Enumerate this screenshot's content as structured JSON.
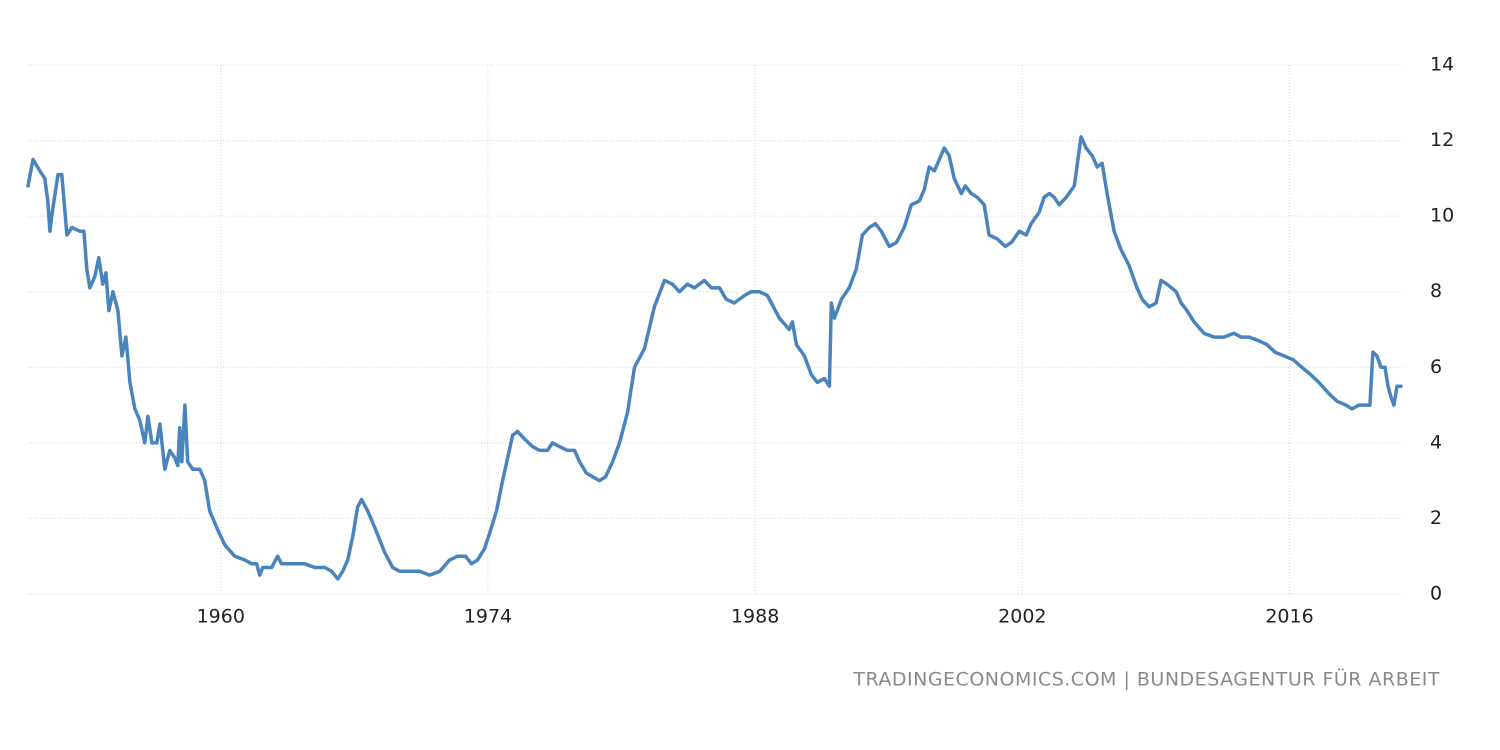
{
  "chart_data": {
    "type": "line",
    "source": "TRADINGECONOMICS.COM | BUNDESAGENTUR FÜR ARBEIT",
    "color": "#4a84bc",
    "grid": true,
    "xlim": [
      1949.9,
      2022.05
    ],
    "xticks": [
      1960,
      1974,
      1988,
      2002,
      2016
    ],
    "ylim": [
      0,
      14
    ],
    "yticks": [
      0,
      2,
      4,
      6,
      8,
      10,
      12,
      14
    ],
    "x": [
      1949.9,
      1950.16,
      1950.52,
      1950.78,
      1950.94,
      1951.05,
      1951.2,
      1951.47,
      1951.67,
      1951.94,
      1952.2,
      1952.62,
      1952.83,
      1952.98,
      1953.14,
      1953.4,
      1953.61,
      1953.82,
      1953.98,
      1954.14,
      1954.35,
      1954.61,
      1954.82,
      1955.03,
      1955.24,
      1955.5,
      1955.76,
      1956.02,
      1956.18,
      1956.39,
      1956.65,
      1956.81,
      1957.07,
      1957.33,
      1957.59,
      1957.75,
      1957.85,
      1957.96,
      1958.12,
      1958.27,
      1958.53,
      1958.9,
      1959.16,
      1959.42,
      1959.84,
      1960.21,
      1960.73,
      1961.26,
      1961.62,
      1961.88,
      1962.04,
      1962.2,
      1962.67,
      1962.98,
      1963.19,
      1963.87,
      1964.4,
      1964.92,
      1965.45,
      1965.81,
      1966.13,
      1966.39,
      1966.65,
      1966.91,
      1967.17,
      1967.38,
      1967.7,
      1968.12,
      1968.59,
      1969.01,
      1969.37,
      1969.9,
      1970.42,
      1970.94,
      1971.47,
      1971.99,
      1972.41,
      1972.83,
      1973.14,
      1973.46,
      1973.82,
      1974.08,
      1974.45,
      1974.77,
      1975.03,
      1975.29,
      1975.55,
      1975.92,
      1976.34,
      1976.7,
      1977.12,
      1977.38,
      1977.75,
      1978.17,
      1978.54,
      1978.8,
      1979.16,
      1979.84,
      1980.16,
      1980.53,
      1980.89,
      1981.31,
      1981.68,
      1982.2,
      1982.72,
      1983.25,
      1983.67,
      1984.03,
      1984.45,
      1984.82,
      1985.34,
      1985.71,
      1986.13,
      1986.49,
      1986.91,
      1987.44,
      1987.8,
      1988.22,
      1988.64,
      1989.27,
      1989.79,
      1989.95,
      1990.16,
      1990.58,
      1990.95,
      1991.26,
      1991.63,
      1991.89,
      1991.99,
      1992.15,
      1992.52,
      1992.93,
      1993.3,
      1993.62,
      1993.98,
      1994.3,
      1994.61,
      1995.03,
      1995.4,
      1995.81,
      1996.18,
      1996.6,
      1996.86,
      1997.12,
      1997.39,
      1997.65,
      1997.91,
      1998.17,
      1998.43,
      1998.8,
      1999.01,
      1999.32,
      1999.64,
      2000.0,
      2000.26,
      2000.68,
      2001.1,
      2001.42,
      2001.84,
      2002.2,
      2002.46,
      2002.88,
      2003.14,
      2003.41,
      2003.67,
      2003.93,
      2004.3,
      2004.72,
      2005.08,
      2005.34,
      2005.66,
      2005.92,
      2006.18,
      2006.44,
      2006.81,
      2007.18,
      2007.59,
      2008.01,
      2008.28,
      2008.64,
      2009.01,
      2009.27,
      2009.58,
      2010.06,
      2010.32,
      2010.63,
      2011.0,
      2011.52,
      2012.05,
      2012.57,
      2013.09,
      2013.46,
      2013.88,
      2014.4,
      2014.82,
      2015.24,
      2015.71,
      2016.18,
      2016.65,
      2017.12,
      2017.54,
      2018.07,
      2018.49,
      2018.96,
      2019.27,
      2019.64,
      2020.21,
      2020.37,
      2020.58,
      2020.79,
      2021.0,
      2021.16,
      2021.32,
      2021.47,
      2021.63,
      2021.84
    ],
    "values": [
      10.8,
      11.5,
      11.2,
      11.0,
      10.4,
      9.6,
      10.2,
      11.1,
      11.1,
      9.5,
      9.7,
      9.6,
      9.6,
      8.6,
      8.1,
      8.4,
      8.9,
      8.2,
      8.5,
      7.5,
      8.0,
      7.5,
      6.3,
      6.8,
      5.6,
      4.9,
      4.6,
      4.0,
      4.7,
      4.0,
      4.0,
      4.5,
      3.3,
      3.8,
      3.6,
      3.4,
      4.4,
      3.5,
      5.0,
      3.5,
      3.3,
      3.3,
      3.0,
      2.2,
      1.7,
      1.3,
      1.0,
      0.9,
      0.8,
      0.8,
      0.5,
      0.7,
      0.7,
      1.0,
      0.8,
      0.8,
      0.8,
      0.7,
      0.7,
      0.6,
      0.4,
      0.6,
      0.9,
      1.5,
      2.3,
      2.5,
      2.2,
      1.7,
      1.1,
      0.7,
      0.6,
      0.6,
      0.6,
      0.5,
      0.6,
      0.9,
      1.0,
      1.0,
      0.8,
      0.9,
      1.2,
      1.6,
      2.2,
      3.0,
      3.6,
      4.2,
      4.3,
      4.1,
      3.9,
      3.8,
      3.8,
      4.0,
      3.9,
      3.8,
      3.8,
      3.5,
      3.2,
      3.0,
      3.1,
      3.5,
      4.0,
      4.8,
      6.0,
      6.5,
      7.6,
      8.3,
      8.2,
      8.0,
      8.2,
      8.1,
      8.3,
      8.1,
      8.1,
      7.8,
      7.7,
      7.9,
      8.0,
      8.0,
      7.9,
      7.3,
      7.0,
      7.2,
      6.6,
      6.3,
      5.8,
      5.6,
      5.7,
      5.5,
      7.7,
      7.3,
      7.8,
      8.1,
      8.6,
      9.5,
      9.7,
      9.8,
      9.6,
      9.2,
      9.3,
      9.7,
      10.3,
      10.4,
      10.7,
      11.3,
      11.2,
      11.5,
      11.8,
      11.6,
      11.0,
      10.6,
      10.8,
      10.6,
      10.5,
      10.3,
      9.5,
      9.4,
      9.2,
      9.3,
      9.6,
      9.5,
      9.8,
      10.1,
      10.5,
      10.6,
      10.5,
      10.3,
      10.5,
      10.8,
      12.1,
      11.8,
      11.6,
      11.3,
      11.4,
      10.6,
      9.6,
      9.1,
      8.7,
      8.1,
      7.8,
      7.6,
      7.7,
      8.3,
      8.2,
      8.0,
      7.7,
      7.5,
      7.2,
      6.9,
      6.8,
      6.8,
      6.9,
      6.8,
      6.8,
      6.7,
      6.6,
      6.4,
      6.3,
      6.2,
      6.0,
      5.8,
      5.6,
      5.3,
      5.1,
      5.0,
      4.9,
      5.0,
      5.0,
      6.4,
      6.3,
      6.0,
      6.0,
      5.5,
      5.2,
      5.0,
      5.5,
      5.5
    ]
  }
}
